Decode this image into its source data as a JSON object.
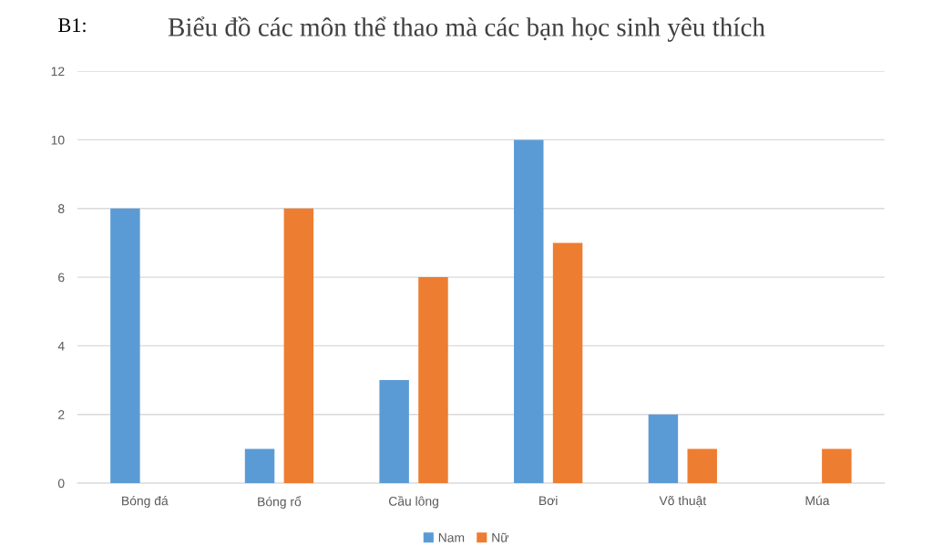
{
  "chart_data": {
    "type": "bar",
    "title": "Biểu đồ các môn thể thao mà các bạn học sinh yêu thích",
    "annotations": [
      "B1:"
    ],
    "categories": [
      "Bóng đá",
      "Bóng rổ",
      "Cầu lông",
      "Bơi",
      "Võ thuật",
      "Múa"
    ],
    "series": [
      {
        "name": "Nam",
        "color": "#5b9bd5",
        "values": [
          8,
          1,
          3,
          10,
          2,
          0
        ]
      },
      {
        "name": "Nữ",
        "color": "#ed7d31",
        "values": [
          0,
          8,
          6,
          7,
          1,
          1
        ]
      }
    ],
    "ylim": [
      0,
      12
    ],
    "yticks": [
      0,
      2,
      4,
      6,
      8,
      10,
      12
    ],
    "grid": "y",
    "legend": "bottom"
  }
}
